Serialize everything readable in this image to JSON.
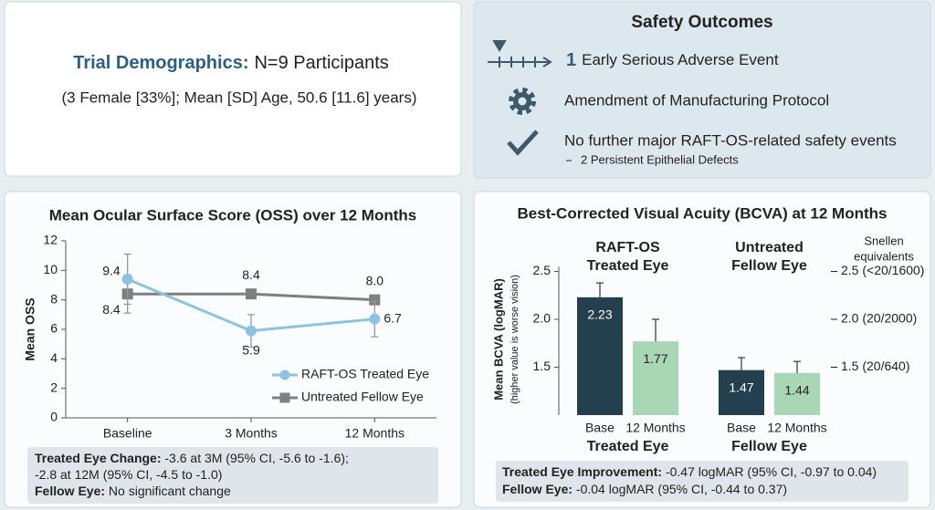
{
  "demographics": {
    "title": "Trial Demographics:",
    "headline": "N=9 Participants",
    "detail": "(3 Female [33%]; Mean [SD] Age, 50.6 [11.6] years)"
  },
  "safety": {
    "title": "Safety Outcomes",
    "items": [
      {
        "emphasis": "1",
        "text": "Early Serious Adverse Event"
      },
      {
        "text": "Amendment of Manufacturing Protocol"
      },
      {
        "text": "No further major RAFT-OS-related safety events",
        "sub": "2 Persistent Epithelial Defects"
      }
    ]
  },
  "chart_data": [
    {
      "type": "line",
      "title": "Mean Ocular Surface Score (OSS) over 12 Months",
      "y_label": "Mean OSS",
      "categories": [
        "Baseline",
        "3 Months",
        "12 Months"
      ],
      "series": [
        {
          "name": "RAFT-OS Treated Eye",
          "color": "#8cc3e3",
          "values": [
            9.4,
            5.9,
            6.7
          ],
          "errors": [
            1.7,
            1.1,
            1.2
          ]
        },
        {
          "name": "Untreated Fellow Eye",
          "color": "#7f7f7f",
          "values": [
            8.4,
            8.4,
            8.0
          ],
          "value_labels": [
            "8.4",
            "8.4",
            "8.0"
          ],
          "errors": [
            1.3,
            null,
            null
          ]
        }
      ],
      "ylim": [
        0,
        12
      ],
      "yticks": [
        0,
        2,
        4,
        6,
        8,
        10,
        12
      ],
      "notes": [
        {
          "label": "Treated Eye Change:",
          "text": " -3.6 at 3M (95% CI, -5.6 to -1.6);"
        },
        {
          "text": "-2.8 at 12M (95% CI, -4.5 to -1.0)"
        },
        {
          "label": "Fellow Eye:",
          "text": " No significant change"
        }
      ]
    },
    {
      "type": "bar",
      "title": "Best-Corrected Visual Acuity (BCVA) at 12 Months",
      "y_label": "Mean BCVA (logMAR)",
      "y_sublabel": "(higher value is worse vision)",
      "groups": [
        {
          "header": [
            "RAFT-OS",
            "Treated Eye"
          ],
          "label": "Treated Eye"
        },
        {
          "header": [
            "Untreated",
            "Fellow Eye"
          ],
          "label": "Fellow Eye"
        }
      ],
      "categories": [
        "Base",
        "12 Months",
        "Base",
        "12 Months"
      ],
      "values": [
        2.23,
        1.77,
        1.47,
        1.44
      ],
      "errors": [
        0.15,
        0.23,
        0.13,
        0.12
      ],
      "colors": [
        "#243f4e",
        "#a9d6b4",
        "#243f4e",
        "#a9d6b4"
      ],
      "ylim": [
        1.0,
        2.55
      ],
      "yticks": [
        1.5,
        {
          "value": 2,
          "label": "2.0"
        },
        2.5
      ],
      "snellen": {
        "title": [
          "Snellen",
          "equivalents"
        ],
        "ticks": [
          {
            "value": 2.5,
            "label": "2.5 (<20/1600)"
          },
          {
            "value": 2,
            "label": "2.0 (20/2000)"
          },
          {
            "value": 1.5,
            "label": "1.5 (20/640)"
          }
        ]
      },
      "notes": [
        {
          "label": "Treated Eye Improvement:",
          "text": " -0.47 logMAR (95% CI, -0.97 to 0.04)"
        },
        {
          "label": "Fellow Eye:",
          "text": " -0.04 logMAR (95% CI, -0.44 to 0.37)"
        }
      ]
    }
  ]
}
